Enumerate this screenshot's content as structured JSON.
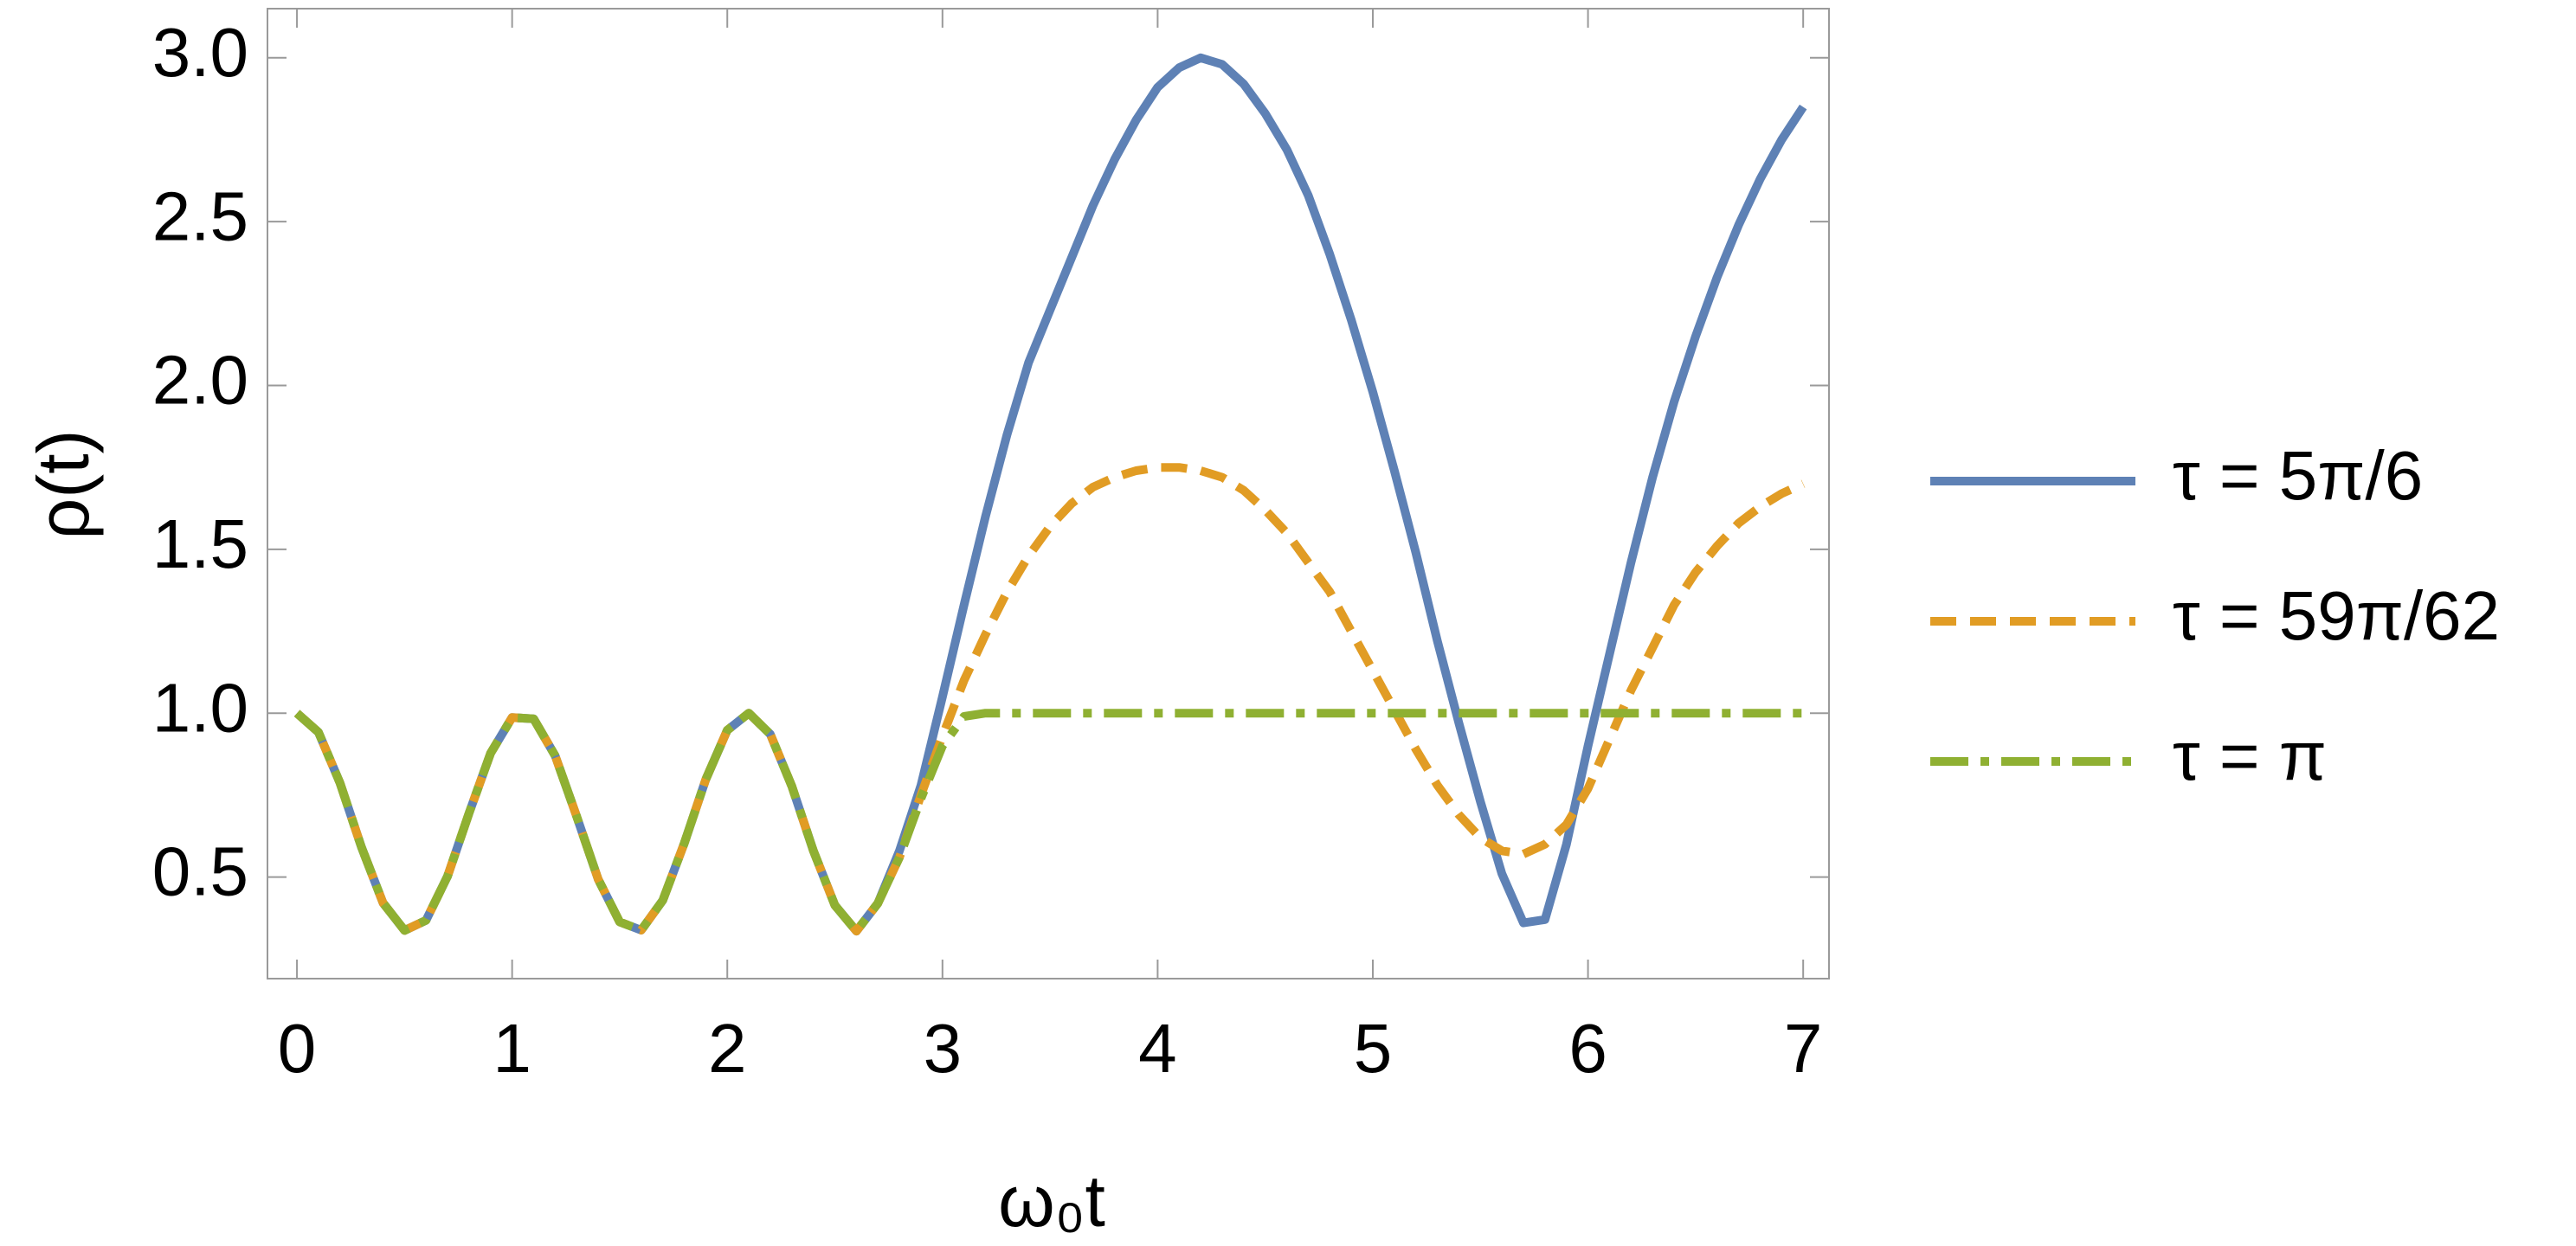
{
  "chart_data": {
    "type": "line",
    "x_label": "ω₀t",
    "y_label": "ρ(t)",
    "x": [
      0,
      0.1,
      0.2,
      0.3,
      0.4,
      0.5,
      0.6,
      0.7,
      0.8,
      0.9,
      1,
      1.1,
      1.2,
      1.3,
      1.4,
      1.5,
      1.6,
      1.7,
      1.8,
      1.9,
      2,
      2.1,
      2.2,
      2.3,
      2.4,
      2.5,
      2.6,
      2.7,
      2.8,
      2.9,
      3,
      3.1,
      3.2,
      3.3,
      3.4,
      3.5,
      3.6,
      3.7,
      3.8,
      3.9,
      4,
      4.1,
      4.2,
      4.3,
      4.4,
      4.5,
      4.6,
      4.7,
      4.8,
      4.9,
      5,
      5.1,
      5.2,
      5.3,
      5.4,
      5.5,
      5.6,
      5.7,
      5.8,
      5.9,
      6,
      6.1,
      6.2,
      6.3,
      6.4,
      6.5,
      6.6,
      6.7,
      6.8,
      6.9,
      7
    ],
    "series": [
      {
        "name": "τ = 5π/6",
        "color": "#5e81b5",
        "dash": "solid",
        "values": [
          1,
          0.942,
          0.787,
          0.591,
          0.421,
          0.337,
          0.368,
          0.503,
          0.695,
          0.878,
          0.987,
          0.983,
          0.87,
          0.685,
          0.493,
          0.363,
          0.338,
          0.429,
          0.603,
          0.798,
          0.948,
          1,
          0.936,
          0.777,
          0.58,
          0.414,
          0.335,
          0.42,
          0.58,
          0.78,
          1.05,
          1.33,
          1.6,
          1.85,
          2.07,
          2.23,
          2.39,
          2.55,
          2.69,
          2.81,
          2.91,
          2.97,
          3.0,
          2.98,
          2.92,
          2.83,
          2.72,
          2.58,
          2.4,
          2.2,
          1.98,
          1.74,
          1.49,
          1.22,
          0.97,
          0.73,
          0.51,
          0.36,
          0.37,
          0.6,
          0.9,
          1.18,
          1.46,
          1.72,
          1.95,
          2.15,
          2.33,
          2.49,
          2.63,
          2.75,
          2.85
        ]
      },
      {
        "name": "τ = 59π/62",
        "color": "#e19c24",
        "dash": "dashed",
        "values": [
          1,
          0.942,
          0.787,
          0.591,
          0.421,
          0.337,
          0.368,
          0.503,
          0.695,
          0.878,
          0.987,
          0.983,
          0.87,
          0.685,
          0.493,
          0.363,
          0.338,
          0.429,
          0.603,
          0.798,
          0.948,
          1,
          0.936,
          0.777,
          0.58,
          0.414,
          0.335,
          0.42,
          0.56,
          0.75,
          0.93,
          1.1,
          1.24,
          1.37,
          1.48,
          1.57,
          1.64,
          1.69,
          1.72,
          1.74,
          1.75,
          1.75,
          1.74,
          1.72,
          1.68,
          1.62,
          1.55,
          1.46,
          1.37,
          1.25,
          1.13,
          1.01,
          0.89,
          0.78,
          0.69,
          0.62,
          0.58,
          0.57,
          0.6,
          0.66,
          0.77,
          0.92,
          1.07,
          1.2,
          1.33,
          1.43,
          1.51,
          1.58,
          1.63,
          1.67,
          1.7
        ]
      },
      {
        "name": "τ = π",
        "color": "#8fb032",
        "dash": "dashdot",
        "values": [
          1,
          0.942,
          0.787,
          0.591,
          0.421,
          0.337,
          0.368,
          0.503,
          0.695,
          0.878,
          0.987,
          0.983,
          0.87,
          0.685,
          0.493,
          0.363,
          0.338,
          0.429,
          0.603,
          0.798,
          0.948,
          1,
          0.936,
          0.777,
          0.58,
          0.414,
          0.335,
          0.42,
          0.56,
          0.74,
          0.9,
          0.99,
          1,
          1,
          1,
          1,
          1,
          1,
          1,
          1,
          1,
          1,
          1,
          1,
          1,
          1,
          1,
          1,
          1,
          1,
          1,
          1,
          1,
          1,
          1,
          1,
          1,
          1,
          1,
          1,
          1,
          1,
          1,
          1,
          1,
          1,
          1,
          1,
          1,
          1,
          1
        ]
      }
    ],
    "xlim": [
      -0.137,
      7.12
    ],
    "ylim": [
      0.19,
      3.15
    ],
    "xticks": [
      0,
      1,
      2,
      3,
      4,
      5,
      6,
      7
    ],
    "yticks": [
      0.5,
      {
        "value": 1,
        "label": "1.0"
      },
      1.5,
      {
        "value": 2,
        "label": "2.0"
      },
      2.5,
      {
        "value": 3,
        "label": "3.0"
      }
    ],
    "legend": "right"
  }
}
